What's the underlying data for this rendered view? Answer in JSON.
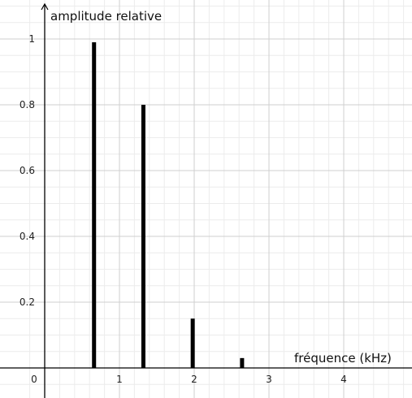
{
  "chart_data": {
    "type": "bar",
    "ylabel": "amplitude relative",
    "xlabel": "fréquence (kHz)",
    "xlim": [
      -0.15,
      4.9
    ],
    "ylim": [
      -0.1,
      1.1
    ],
    "x_ticks": [
      0,
      1,
      2,
      3,
      4
    ],
    "x_tick_labels": [
      "0",
      "1",
      "2",
      "3",
      "4"
    ],
    "y_ticks": [
      0.2,
      0.4,
      0.6,
      0.8,
      1
    ],
    "y_tick_labels": [
      "0.2",
      "0.4",
      "0.6",
      "0.8",
      "1"
    ],
    "grid": true,
    "series": [
      {
        "x": [
          0.66,
          1.32,
          1.98,
          2.64
        ],
        "values": [
          0.99,
          0.8,
          0.15,
          0.03
        ]
      }
    ],
    "colors": {
      "bars": "#000000",
      "axes": "#000000",
      "major_grid": "#cfcfcf",
      "minor_grid": "#ececec"
    }
  }
}
